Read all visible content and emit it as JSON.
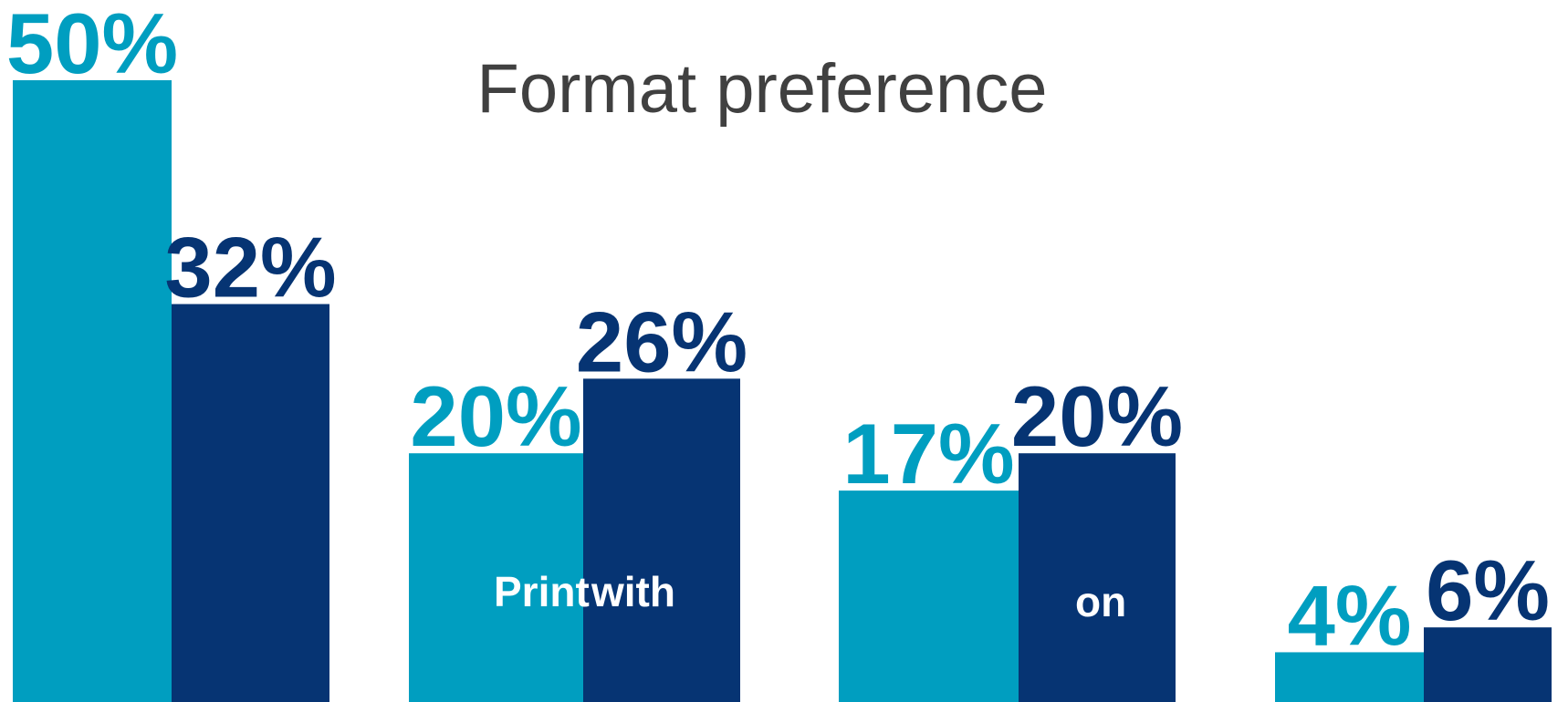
{
  "chart_data": {
    "type": "bar",
    "title": "Format preference",
    "xlabel": "",
    "ylabel": "",
    "ylim": [
      0,
      52
    ],
    "grid": false,
    "legend": "none",
    "categories": [
      "",
      "",
      "",
      ""
    ],
    "series": [
      {
        "color": "#009EC0",
        "values": [
          50,
          20,
          17,
          4
        ],
        "labels": [
          "50%",
          "20%",
          "17%",
          "4%"
        ]
      },
      {
        "color": "#063473",
        "values": [
          32,
          26,
          20,
          6
        ],
        "labels": [
          "32%",
          "26%",
          "20%",
          "6%"
        ]
      }
    ],
    "in_bar_text": [
      "Print",
      "with",
      "on"
    ]
  }
}
